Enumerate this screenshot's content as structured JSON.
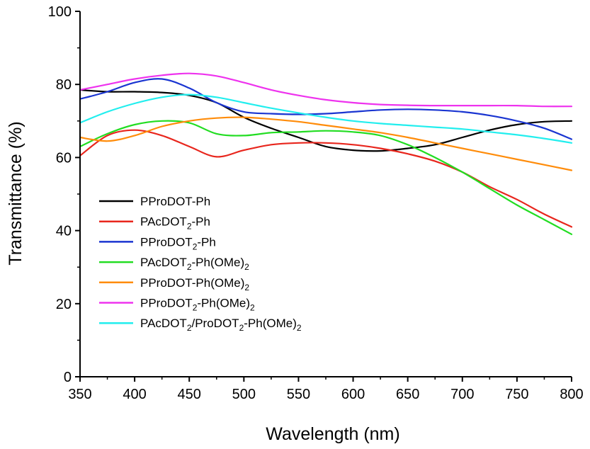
{
  "chart_data": {
    "type": "line",
    "xlabel": "Wavelength (nm)",
    "ylabel": "Transmittance (%)",
    "xlim": [
      350,
      800
    ],
    "ylim": [
      0,
      100
    ],
    "xticks": [
      350,
      400,
      450,
      500,
      550,
      600,
      650,
      700,
      750,
      800
    ],
    "yticks": [
      0,
      20,
      40,
      60,
      80,
      100
    ],
    "grid": false,
    "legend_position": "center-left",
    "series": [
      {
        "name": "PProDOT-Ph",
        "legend_text": {
          "base": "PProDOT-Ph",
          "sub": "",
          "tail": "",
          "sub2": ""
        },
        "color": "#000000",
        "x": [
          350,
          375,
          400,
          425,
          450,
          475,
          500,
          525,
          550,
          575,
          600,
          625,
          650,
          675,
          700,
          725,
          750,
          775,
          800
        ],
        "y": [
          78.5,
          78,
          78,
          77.8,
          77,
          75,
          71,
          68,
          65.5,
          63,
          62,
          61.8,
          62.5,
          63.5,
          65.5,
          67.5,
          69,
          69.8,
          70
        ]
      },
      {
        "name": "PAcDOT2-Ph",
        "legend_text": {
          "base": "PAcDOT",
          "sub": "2",
          "tail": "-Ph",
          "sub2": ""
        },
        "color": "#e8261d",
        "x": [
          350,
          375,
          400,
          425,
          450,
          475,
          500,
          525,
          550,
          575,
          600,
          625,
          650,
          675,
          700,
          725,
          750,
          775,
          800
        ],
        "y": [
          60.5,
          66,
          67.5,
          66,
          63,
          60.2,
          62,
          63.5,
          64,
          64,
          63.5,
          62.5,
          61,
          59,
          56,
          52,
          48.5,
          44.5,
          41
        ]
      },
      {
        "name": "PProDOT2-Ph",
        "legend_text": {
          "base": "PProDOT",
          "sub": "2",
          "tail": "-Ph",
          "sub2": ""
        },
        "color": "#1a35d1",
        "x": [
          350,
          375,
          400,
          425,
          450,
          475,
          500,
          525,
          550,
          575,
          600,
          625,
          650,
          675,
          700,
          725,
          750,
          775,
          800
        ],
        "y": [
          76,
          78,
          80.5,
          81.5,
          79,
          75,
          72.5,
          72,
          71.8,
          72,
          72.5,
          73,
          73.2,
          73,
          72.5,
          71.5,
          70,
          68,
          65
        ]
      },
      {
        "name": "PAcDOT2-Ph(OMe)2",
        "legend_text": {
          "base": "PAcDOT",
          "sub": "2",
          "tail": "-Ph(OMe)",
          "sub2": "2"
        },
        "color": "#22dd22",
        "x": [
          350,
          375,
          400,
          425,
          450,
          475,
          500,
          525,
          550,
          575,
          600,
          625,
          650,
          675,
          700,
          725,
          750,
          775,
          800
        ],
        "y": [
          63,
          66.5,
          69,
          70,
          69.5,
          66.5,
          66,
          66.8,
          67,
          67.3,
          67,
          66,
          63.5,
          60,
          56,
          51.5,
          47,
          43,
          39
        ]
      },
      {
        "name": "PProDOT-Ph(OMe)2",
        "legend_text": {
          "base": "PProDOT-Ph(OMe)",
          "sub": "2",
          "tail": "",
          "sub2": ""
        },
        "color": "#ff8c0a",
        "x": [
          350,
          375,
          400,
          425,
          450,
          475,
          500,
          525,
          550,
          575,
          600,
          625,
          650,
          675,
          700,
          725,
          750,
          775,
          800
        ],
        "y": [
          65.5,
          64.5,
          66,
          68.5,
          70,
          70.8,
          71,
          70.5,
          69.8,
          68.8,
          67.8,
          66.8,
          65.5,
          64,
          62.5,
          61,
          59.5,
          58,
          56.5
        ]
      },
      {
        "name": "PProDOT2-Ph(OMe)2",
        "legend_text": {
          "base": "PProDOT",
          "sub": "2",
          "tail": "-Ph(OMe)",
          "sub2": "2"
        },
        "color": "#ee33ee",
        "x": [
          350,
          375,
          400,
          425,
          450,
          475,
          500,
          525,
          550,
          575,
          600,
          625,
          650,
          675,
          700,
          725,
          750,
          775,
          800
        ],
        "y": [
          78.5,
          80,
          81.5,
          82.5,
          83,
          82.3,
          80.5,
          78.5,
          77,
          75.8,
          75,
          74.5,
          74.3,
          74.2,
          74.2,
          74.2,
          74.2,
          74,
          74
        ]
      },
      {
        "name": "PAcDOT2/ProDOT2-Ph(OMe)2",
        "legend_text": {
          "base": "PAcDOT",
          "sub": "2",
          "tail": "/ProDOT",
          "sub2": "2",
          "tail2": "-Ph(OMe)",
          "sub3": "2"
        },
        "color": "#22eeee",
        "x": [
          350,
          375,
          400,
          425,
          450,
          475,
          500,
          525,
          550,
          575,
          600,
          625,
          650,
          675,
          700,
          725,
          750,
          775,
          800
        ],
        "y": [
          69.5,
          72.5,
          74.8,
          76.5,
          77.2,
          76.5,
          75,
          73.5,
          72.2,
          71,
          70,
          69.3,
          68.8,
          68.3,
          67.8,
          67,
          66.2,
          65.2,
          64
        ]
      }
    ]
  }
}
